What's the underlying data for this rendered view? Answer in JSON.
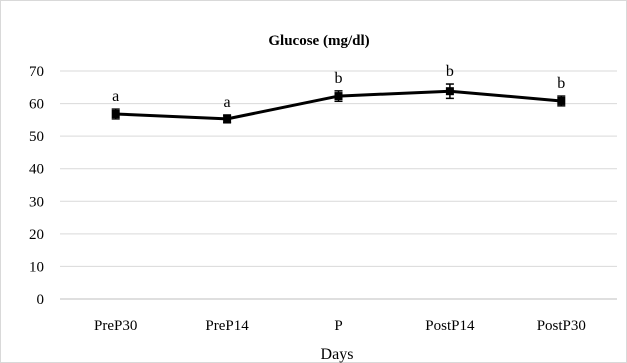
{
  "chart_data": {
    "type": "line",
    "title": "Glucose (mg/dl)",
    "xlabel": "Days",
    "ylabel": "",
    "categories": [
      "PreP30",
      "PreP14",
      "P",
      "PostP14",
      "PostP30"
    ],
    "series": [
      {
        "values": [
          56.8,
          55.3,
          62.3,
          63.8,
          60.8
        ],
        "error": [
          1.5,
          1.2,
          1.6,
          2.2,
          1.5
        ],
        "labels": [
          "a",
          "a",
          "b",
          "b",
          "b"
        ],
        "color": "#000000"
      }
    ],
    "ylim": [
      0,
      70
    ],
    "yticks": [
      0,
      10,
      20,
      30,
      40,
      50,
      60,
      70
    ],
    "grid": true,
    "legend": "none"
  }
}
